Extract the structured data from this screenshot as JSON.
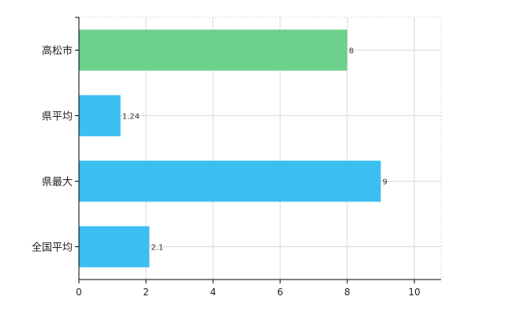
{
  "chart_data": {
    "type": "bar",
    "orientation": "horizontal",
    "categories": [
      "高松市",
      "県平均",
      "県最大",
      "全国平均"
    ],
    "values": [
      8,
      1.24,
      9,
      2.1
    ],
    "value_labels": [
      "8",
      "1.24",
      "9",
      "2.1"
    ],
    "bar_colors": [
      "#6dd18b",
      "#3bbef0",
      "#3bbef0",
      "#3bbef0"
    ],
    "xlim": [
      0,
      10.8
    ],
    "x_ticks": [
      0,
      2,
      4,
      6,
      8,
      10
    ],
    "x_tick_labels": [
      "0",
      "2",
      "4",
      "6",
      "8",
      "10"
    ],
    "grid": true,
    "grid_color": "#d9d9d9",
    "axis_color": "#000000",
    "title": "",
    "xlabel": "",
    "ylabel": ""
  }
}
